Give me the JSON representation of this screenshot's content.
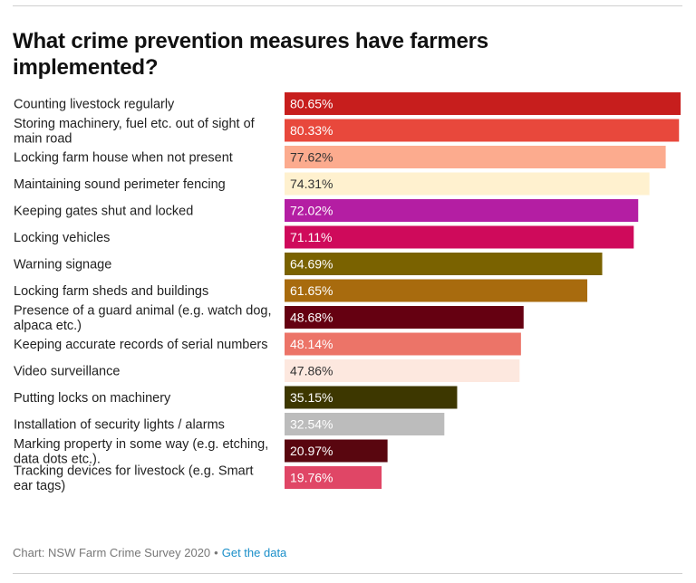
{
  "title": "What crime prevention measures have farmers implemented?",
  "footer": {
    "source": "Chart: NSW Farm Crime Survey 2020",
    "separator": "•",
    "link": "Get the data"
  },
  "chart_data": {
    "type": "bar",
    "orientation": "horizontal",
    "categories": [
      [
        "Counting livestock regularly"
      ],
      [
        "Storing machinery, fuel etc. out of sight of",
        "main road"
      ],
      [
        "Locking farm house when not present"
      ],
      [
        "Maintaining sound perimeter fencing"
      ],
      [
        "Keeping gates shut and locked"
      ],
      [
        "Locking vehicles"
      ],
      [
        "Warning signage"
      ],
      [
        "Locking farm sheds and buildings"
      ],
      [
        "Presence of a guard animal (e.g. watch dog,",
        "alpaca etc.)"
      ],
      [
        "Keeping accurate records of serial numbers"
      ],
      [
        "Video surveillance"
      ],
      [
        "Putting locks on machinery"
      ],
      [
        "Installation of security lights / alarms"
      ],
      [
        "Marking property in some way (e.g. etching,",
        "data dots etc.)."
      ],
      [
        "Tracking devices for livestock (e.g. Smart",
        "ear tags)"
      ]
    ],
    "values": [
      80.65,
      80.33,
      77.62,
      74.31,
      72.02,
      71.11,
      64.69,
      61.65,
      48.68,
      48.14,
      47.86,
      35.15,
      32.54,
      20.97,
      19.76
    ],
    "value_labels": [
      "80.65%",
      "80.33%",
      "77.62%",
      "74.31%",
      "72.02%",
      "71.11%",
      "64.69%",
      "61.65%",
      "48.68%",
      "48.14%",
      "47.86%",
      "35.15%",
      "32.54%",
      "20.97%",
      "19.76%"
    ],
    "colors": [
      "#c71e1d",
      "#e8483c",
      "#fcab8e",
      "#fff1cf",
      "#b41ea3",
      "#cf0a5b",
      "#7a6200",
      "#a86b0e",
      "#650011",
      "#ec7468",
      "#fde8df",
      "#3d3700",
      "#bcbcbc",
      "#59060f",
      "#e04666"
    ],
    "label_colors": [
      "#ffffff",
      "#ffffff",
      "#333333",
      "#333333",
      "#ffffff",
      "#ffffff",
      "#ffffff",
      "#ffffff",
      "#ffffff",
      "#ffffff",
      "#333333",
      "#ffffff",
      "#ffffff",
      "#ffffff",
      "#ffffff"
    ],
    "xlim": [
      0,
      80.65
    ],
    "xlabel": "",
    "ylabel": "",
    "grid": false,
    "legend": "none"
  }
}
